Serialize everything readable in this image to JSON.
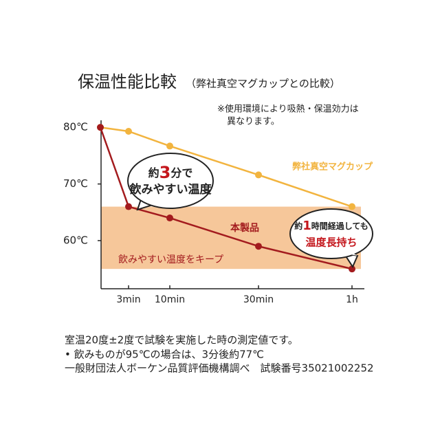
{
  "chart_data": {
    "type": "line",
    "title": "保温性能比較",
    "subtitle": "（弊社真空マグカップとの比較）",
    "note": [
      "※使用環境により吸熱・保温効力は",
      "異なります。"
    ],
    "categories": [
      null,
      "3min",
      "10min",
      "30min",
      "1h"
    ],
    "series": [
      {
        "name": "弊社真空マグカップ",
        "color": "#f2b43f",
        "values": [
          80,
          79.3,
          76.7,
          71.6,
          66
        ]
      },
      {
        "name": "本製品",
        "color": "#a31b1e",
        "values": [
          80,
          66,
          64,
          59,
          55
        ]
      }
    ],
    "band": {
      "range": [
        55,
        66
      ],
      "color": "#f6c79a",
      "label": "飲みやすい温度をキープ"
    },
    "ylim": [
      51.5,
      81
    ],
    "yticks": [
      {
        "value": 60,
        "label": "60℃"
      },
      {
        "value": 70,
        "label": "70℃"
      },
      {
        "value": 80,
        "label": "80℃"
      }
    ],
    "callouts": [
      {
        "line1": [
          "約",
          "3",
          "分で"
        ],
        "line2": "飲みやすい温度"
      },
      {
        "line1": [
          "約",
          "1",
          "時間経過しても"
        ],
        "line2": "温度長持ち"
      }
    ],
    "footer": [
      "室温20度±2度で試験を実施した時の測定値です。",
      "• 飲みものが95℃の場合は、3分後約77℃",
      "一般財団法人ボーケン品質評価機構調べ　試験番号35021002252"
    ]
  }
}
